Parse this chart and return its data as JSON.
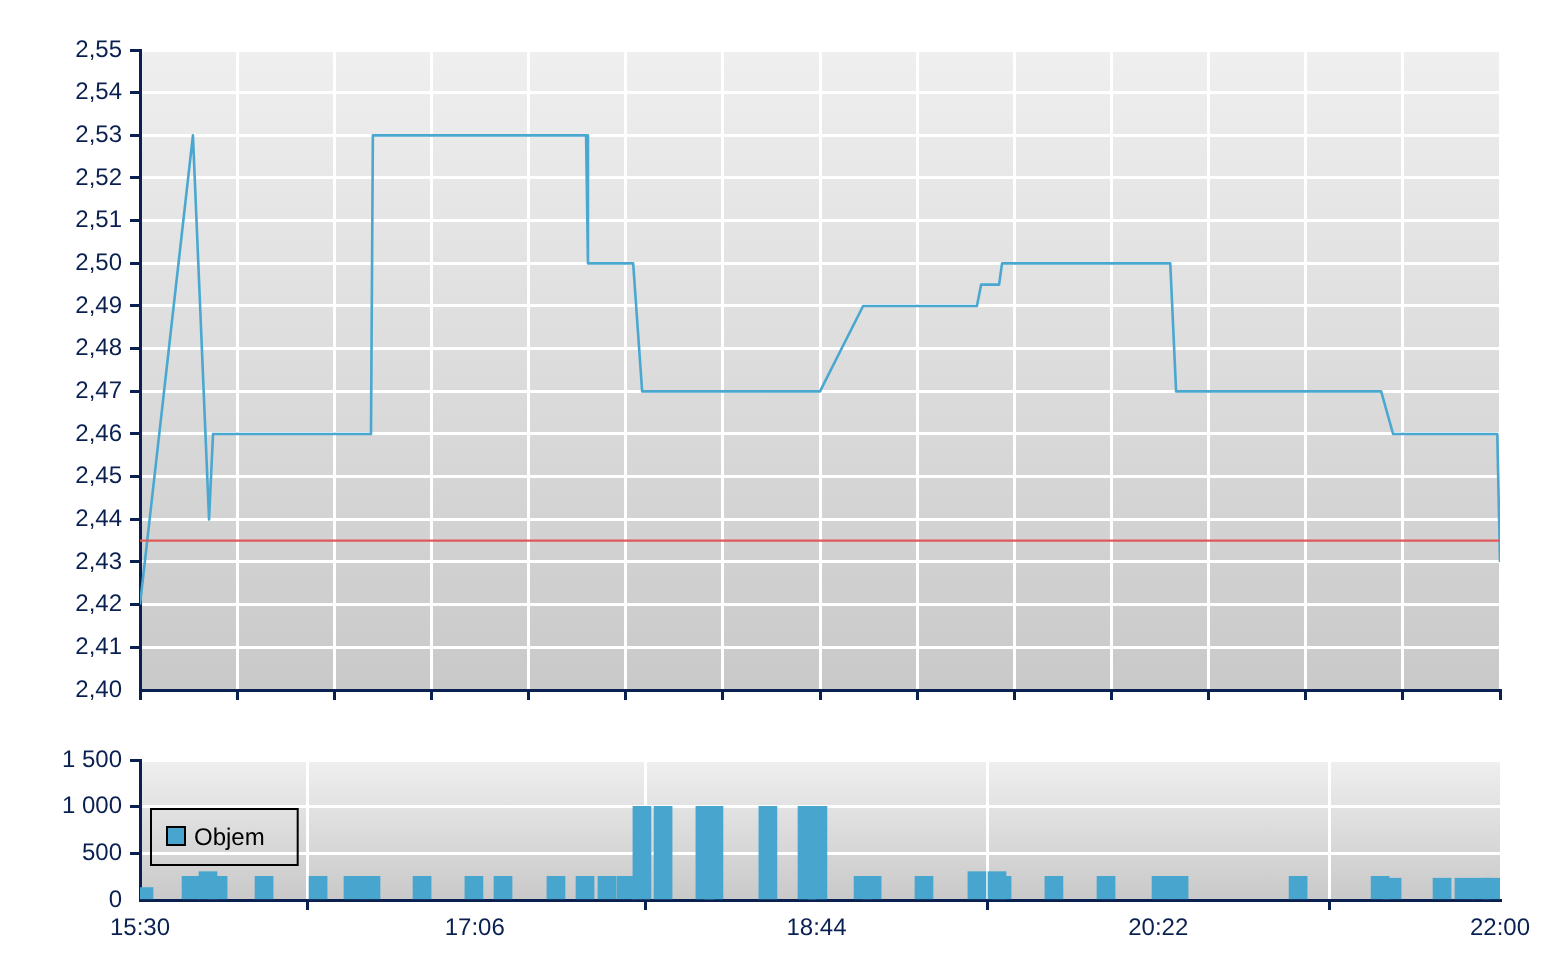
{
  "chart_data": [
    {
      "type": "line",
      "x": [
        15.5,
        15.753,
        15.83,
        15.849,
        16.604,
        16.613,
        17.632,
        17.641,
        17.857,
        17.9,
        18.75,
        18.956,
        19.5,
        19.52,
        19.606,
        19.62,
        20.424,
        20.452,
        21.432,
        21.489,
        21.987,
        22
      ],
      "series": [
        {
          "color": "#4aa8d0",
          "values": [
            2.42,
            2.53,
            2.44,
            2.46,
            2.46,
            2.53,
            2.53,
            2.5,
            2.5,
            2.47,
            2.47,
            2.49,
            2.49,
            2.495,
            2.495,
            2.5,
            2.5,
            2.47,
            2.47,
            2.46,
            2.46,
            2.43
          ]
        }
      ],
      "xlim": [
        15.5,
        22
      ],
      "xticks": [
        {
          "value": 15.5,
          "label": null
        },
        {
          "value": 15.964,
          "label": null
        },
        {
          "value": 16.429,
          "label": null
        },
        {
          "value": 16.893,
          "label": null
        },
        {
          "value": 17.357,
          "label": null
        },
        {
          "value": 17.821,
          "label": null
        },
        {
          "value": 18.286,
          "label": null
        },
        {
          "value": 18.75,
          "label": null
        },
        {
          "value": 19.214,
          "label": null
        },
        {
          "value": 19.679,
          "label": null
        },
        {
          "value": 20.143,
          "label": null
        },
        {
          "value": 20.607,
          "label": null
        },
        {
          "value": 21.071,
          "label": null
        },
        {
          "value": 21.536,
          "label": null
        },
        {
          "value": 22,
          "label": null
        }
      ],
      "ylim": [
        2.4,
        2.55
      ],
      "yticks": [
        {
          "value": 2.4,
          "label": "2,40"
        },
        {
          "value": 2.41,
          "label": "2,41"
        },
        {
          "value": 2.42,
          "label": "2,42"
        },
        {
          "value": 2.43,
          "label": "2,43"
        },
        {
          "value": 2.44,
          "label": "2,44"
        },
        {
          "value": 2.45,
          "label": "2,45"
        },
        {
          "value": 2.46,
          "label": "2,46"
        },
        {
          "value": 2.47,
          "label": "2,47"
        },
        {
          "value": 2.48,
          "label": "2,48"
        },
        {
          "value": 2.49,
          "label": "2,49"
        },
        {
          "value": 2.5,
          "label": "2,50"
        },
        {
          "value": 2.51,
          "label": "2,51"
        },
        {
          "value": 2.52,
          "label": "2,52"
        },
        {
          "value": 2.53,
          "label": "2,53"
        },
        {
          "value": 2.54,
          "label": "2,54"
        },
        {
          "value": 2.55,
          "label": "2,55"
        }
      ],
      "ref_lines": [
        {
          "axis": "y",
          "value": 2.435,
          "color": "#e05a5a"
        }
      ],
      "tick_labels": "y",
      "grid": true,
      "marker": "none",
      "line_style": "solid"
    },
    {
      "type": "bar",
      "x": [
        15.519,
        15.744,
        15.825,
        15.873,
        16.093,
        16.351,
        16.518,
        16.604,
        16.848,
        17.096,
        17.235,
        17.488,
        17.627,
        17.732,
        17.823,
        17.899,
        18.0,
        18.2,
        18.243,
        18.501,
        18.688,
        18.74,
        18.956,
        18.999,
        19.247,
        19.5,
        19.596,
        19.62,
        19.868,
        20.117,
        20.38,
        20.466,
        21.035,
        21.427,
        21.484,
        21.723,
        21.828,
        21.909,
        21.962
      ],
      "series": [
        {
          "name": "Objem",
          "color": "#48a6ce",
          "values": [
            130,
            250,
            300,
            250,
            250,
            250,
            250,
            250,
            250,
            250,
            250,
            250,
            250,
            250,
            250,
            1000,
            1000,
            1000,
            1000,
            1000,
            1000,
            1000,
            250,
            250,
            250,
            300,
            300,
            250,
            250,
            250,
            250,
            250,
            250,
            250,
            230,
            230,
            230,
            230,
            230
          ]
        }
      ],
      "xlim": [
        15.5,
        22
      ],
      "xticks": [
        {
          "value": 15.5,
          "label": "15:30"
        },
        {
          "value": 17.1,
          "label": "17:06"
        },
        {
          "value": 18.7333,
          "label": "18:44"
        },
        {
          "value": 20.3667,
          "label": "20:22"
        },
        {
          "value": 22,
          "label": "22:00"
        }
      ],
      "ylim": [
        0,
        1500
      ],
      "yticks": [
        0,
        500,
        {
          "value": 1000,
          "label": "1 000"
        },
        {
          "value": 1500,
          "label": "1 500"
        }
      ],
      "grid": true,
      "legend": "left"
    }
  ]
}
